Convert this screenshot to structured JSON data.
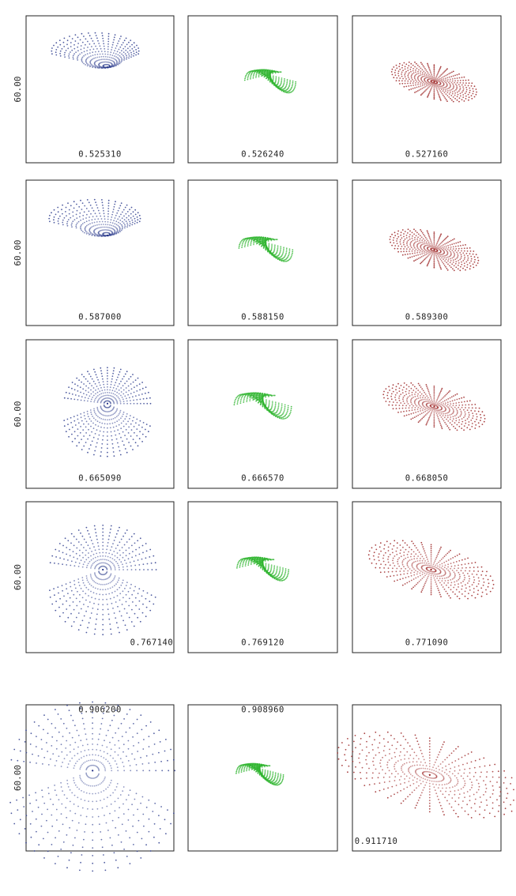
{
  "figure": {
    "y_axis_label": "60.00",
    "rows": [
      {
        "panels": [
          {
            "label": "0.525310",
            "color": "#2a3a8c"
          },
          {
            "label": "0.526240",
            "color": "#2fb52f"
          },
          {
            "label": "0.527160",
            "color": "#9a2020"
          }
        ]
      },
      {
        "panels": [
          {
            "label": "0.587000",
            "color": "#2a3a8c"
          },
          {
            "label": "0.588150",
            "color": "#2fb52f"
          },
          {
            "label": "0.589300",
            "color": "#9a2020"
          }
        ]
      },
      {
        "panels": [
          {
            "label": "0.665090",
            "color": "#2a3a8c"
          },
          {
            "label": "0.666570",
            "color": "#2fb52f"
          },
          {
            "label": "0.668050",
            "color": "#9a2020"
          }
        ]
      },
      {
        "panels": [
          {
            "label": "0.767140",
            "color": "#2a3a8c"
          },
          {
            "label": "0.769120",
            "color": "#2fb52f"
          },
          {
            "label": "0.771090",
            "color": "#9a2020"
          }
        ]
      },
      {
        "panels": [
          {
            "label": "0.906200",
            "color": "#2a3a8c"
          },
          {
            "label": "0.908960",
            "color": "#2fb52f"
          },
          {
            "label": "0.911710",
            "color": "#9a2020"
          }
        ]
      }
    ]
  },
  "chart_data": {
    "type": "scatter",
    "title": "",
    "ylabel": "60.00",
    "panel_values": [
      [
        0.52531,
        0.52624,
        0.52716
      ],
      [
        0.587,
        0.58815,
        0.5893
      ],
      [
        0.66509,
        0.66657,
        0.66805
      ],
      [
        0.76714,
        0.76912,
        0.77109
      ],
      [
        0.9062,
        0.90896,
        0.91171
      ]
    ],
    "series_colors": [
      "#2a3a8c",
      "#2fb52f",
      "#9a2020"
    ],
    "grid": false
  }
}
